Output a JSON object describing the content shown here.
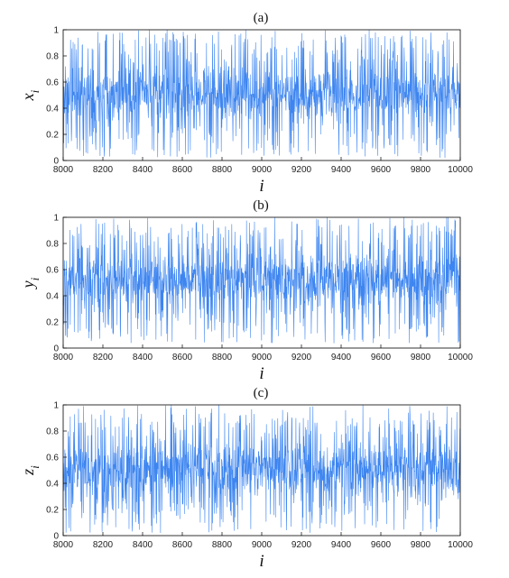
{
  "chart_data": [
    {
      "type": "line",
      "panel": "(a)",
      "xlabel": "i",
      "ylabel_base": "x",
      "ylabel_sub": "i",
      "xlim": [
        8000,
        10000
      ],
      "ylim": [
        0,
        1
      ],
      "xticks": [
        8000,
        8200,
        8400,
        8600,
        8800,
        9000,
        9200,
        9400,
        9600,
        9800,
        10000
      ],
      "yticks": [
        0,
        0.2,
        0.4,
        0.6,
        0.8,
        1
      ],
      "series": [
        {
          "color": "#3d85f0",
          "x_range": [
            8000,
            10000
          ],
          "value_range": [
            0.02,
            1.0
          ],
          "mean": 0.5,
          "seed": 11
        }
      ]
    },
    {
      "type": "line",
      "panel": "(b)",
      "xlabel": "i",
      "ylabel_base": "y",
      "ylabel_sub": "i",
      "xlim": [
        8000,
        10000
      ],
      "ylim": [
        0,
        1
      ],
      "xticks": [
        8000,
        8200,
        8400,
        8600,
        8800,
        9000,
        9200,
        9400,
        9600,
        9800,
        10000
      ],
      "yticks": [
        0,
        0.2,
        0.4,
        0.6,
        0.8,
        1
      ],
      "series": [
        {
          "color": "#3d85f0",
          "x_range": [
            8000,
            10000
          ],
          "value_range": [
            0.03,
            1.0
          ],
          "mean": 0.5,
          "seed": 29
        }
      ]
    },
    {
      "type": "line",
      "panel": "(c)",
      "xlabel": "i",
      "ylabel_base": "z",
      "ylabel_sub": "i",
      "xlim": [
        8000,
        10000
      ],
      "ylim": [
        0,
        1
      ],
      "xticks": [
        8000,
        8200,
        8400,
        8600,
        8800,
        9000,
        9200,
        9400,
        9600,
        9800,
        10000
      ],
      "yticks": [
        0,
        0.2,
        0.4,
        0.6,
        0.8,
        1
      ],
      "series": [
        {
          "color": "#3d85f0",
          "x_range": [
            8000,
            10000
          ],
          "value_range": [
            0.02,
            1.0
          ],
          "mean": 0.5,
          "seed": 47
        }
      ]
    }
  ]
}
